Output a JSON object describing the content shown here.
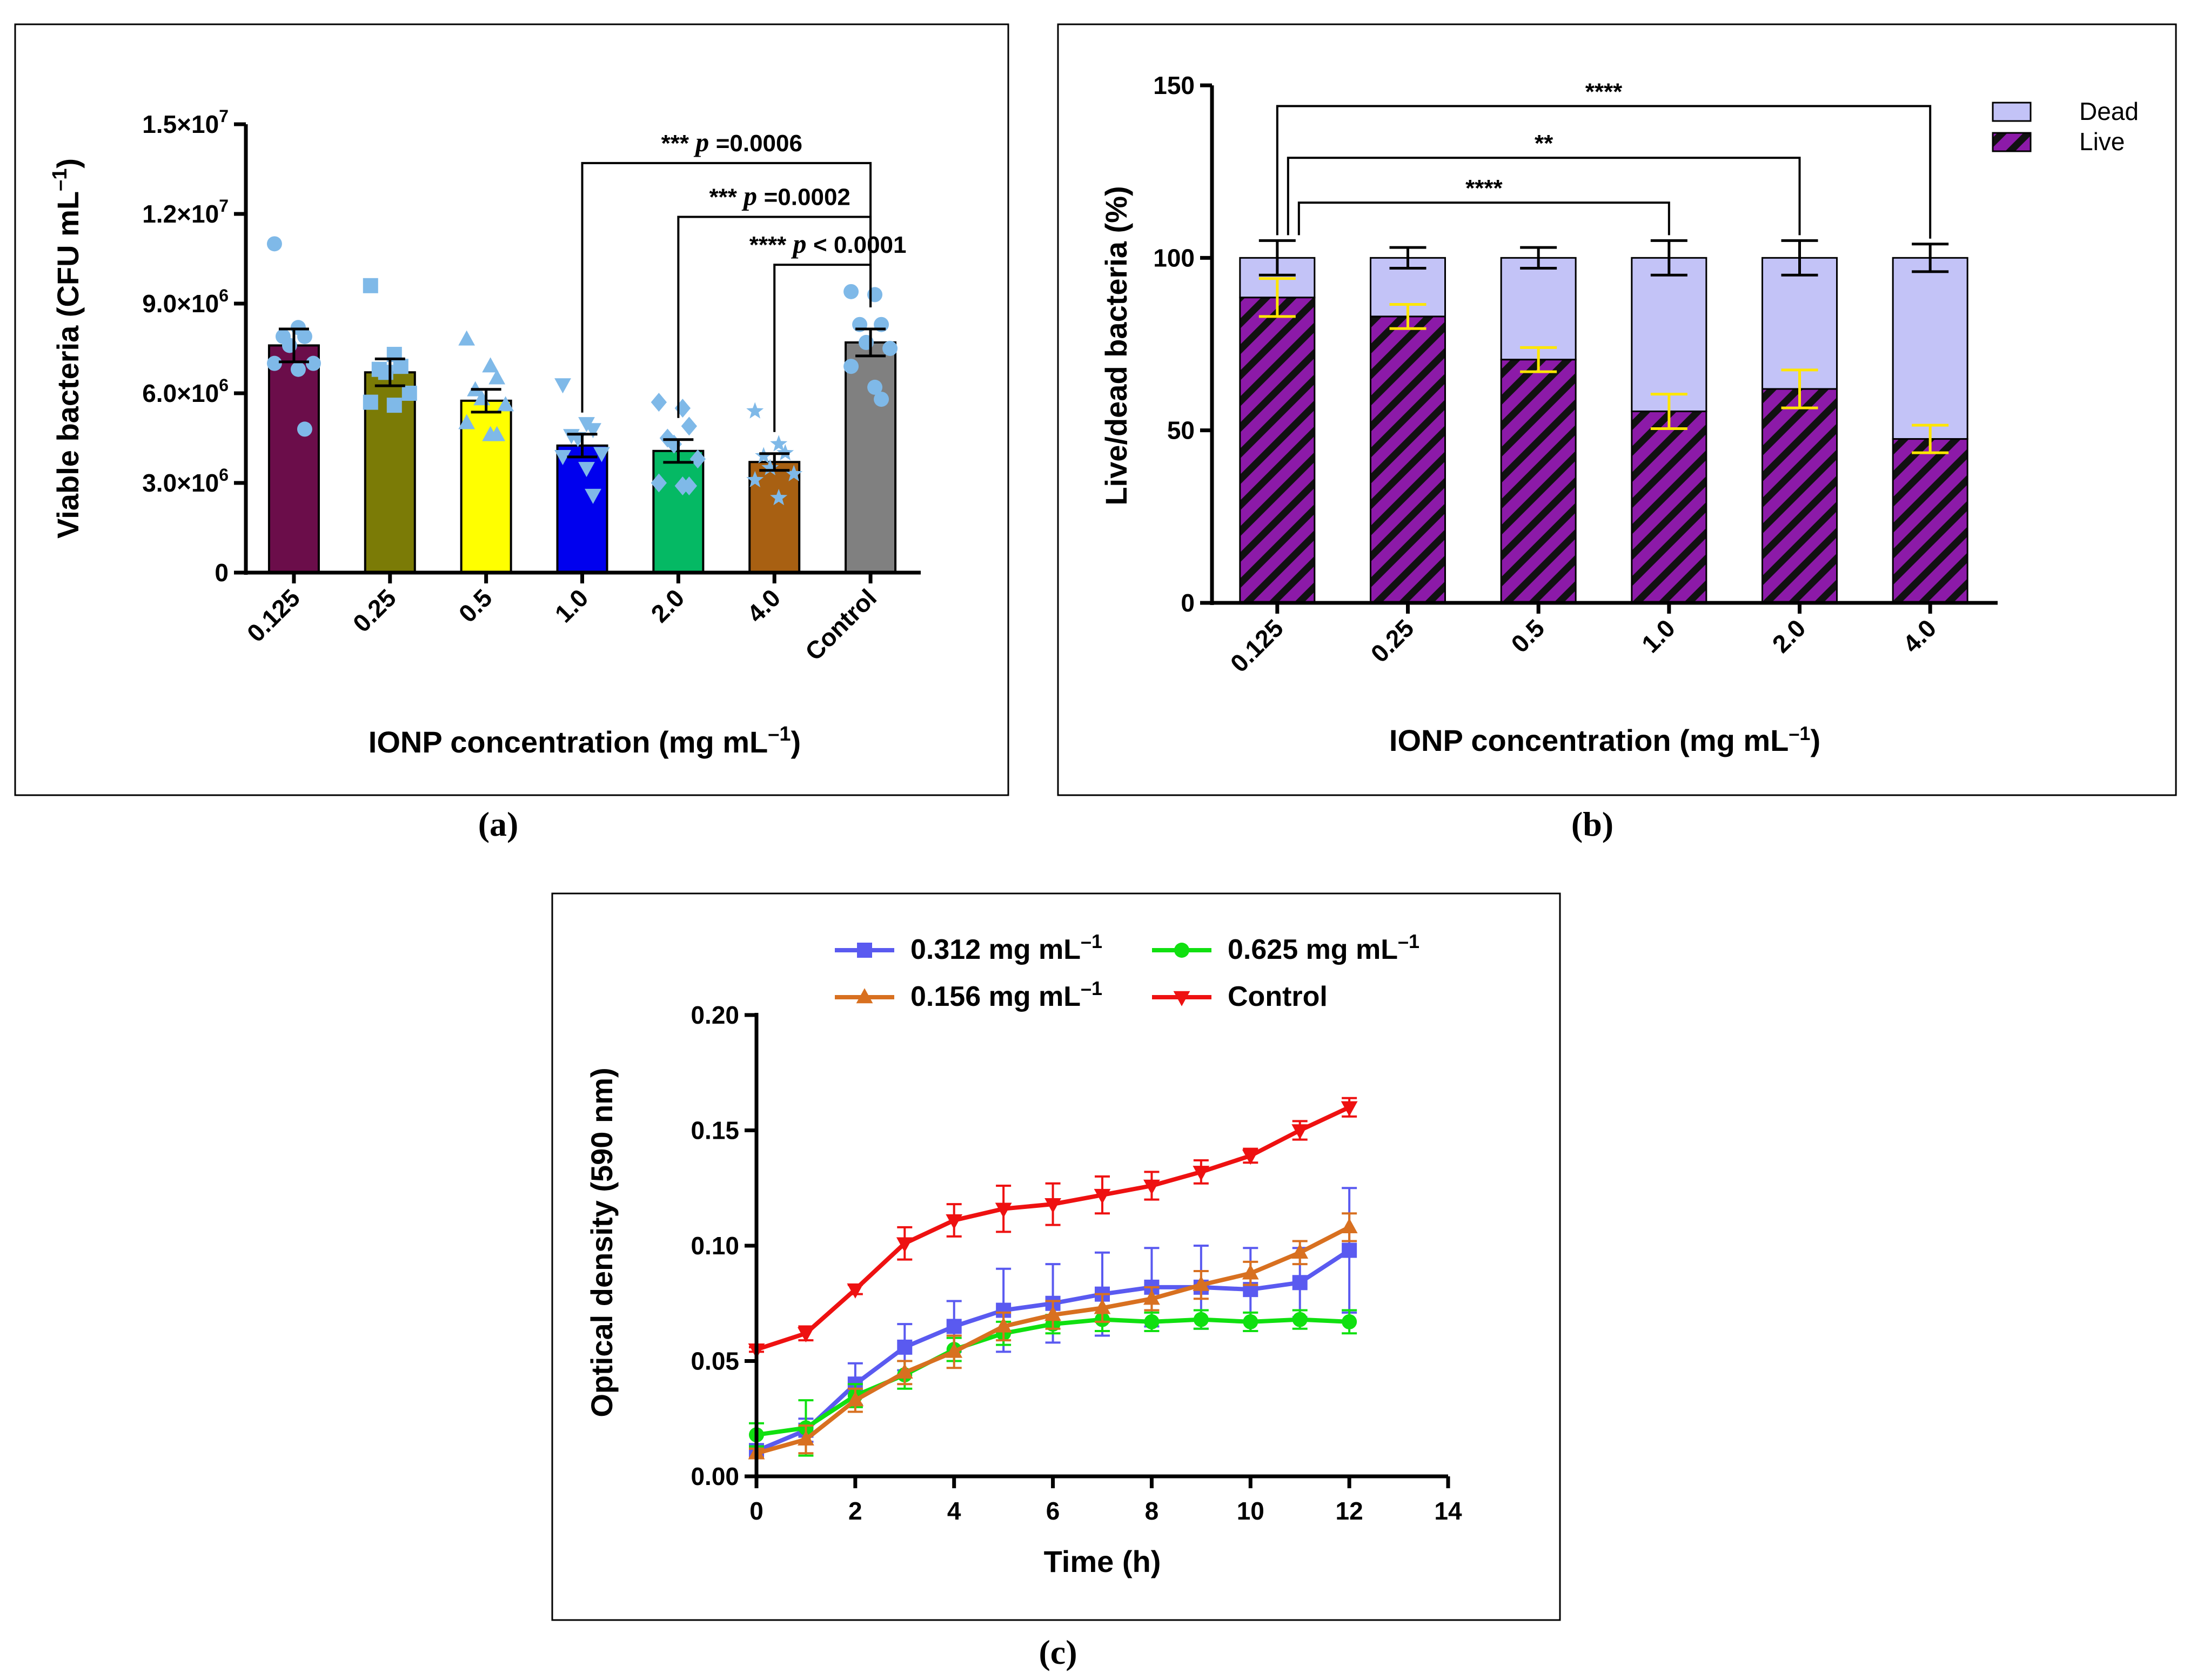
{
  "chart_data": [
    {
      "panel": "(a)",
      "type": "bar",
      "categories": [
        "0.125",
        "0.25",
        "0.5",
        "1.0",
        "2.0",
        "4.0",
        "Control"
      ],
      "values": [
        7600000,
        6700000,
        5750000,
        4250000,
        4070000,
        3700000,
        7700000
      ],
      "errors": [
        550000,
        450000,
        380000,
        380000,
        380000,
        280000,
        450000
      ],
      "colors": [
        "#6b0d4a",
        "#7b7b06",
        "#ffff00",
        "#0000ee",
        "#05b964",
        "#a86012",
        "#808080"
      ],
      "point_colors": "#7fb9e8",
      "points": [
        [
          11000000,
          8200000,
          7900000,
          7900000,
          7600000,
          7000000,
          7000000,
          6800000,
          4800000
        ],
        [
          9600000,
          7300000,
          6900000,
          6800000,
          6700000,
          6000000,
          5700000,
          5600000
        ],
        [
          7800000,
          6900000,
          6500000,
          6100000,
          5800000,
          5600000,
          5000000,
          4600000,
          4600000
        ],
        [
          6300000,
          5000000,
          4800000,
          4600000,
          4500000,
          4000000,
          3900000,
          3500000,
          2600000
        ],
        [
          5700000,
          5500000,
          4900000,
          4500000,
          4300000,
          3800000,
          3000000,
          2900000,
          2900000
        ],
        [
          5400000,
          4300000,
          4000000,
          3900000,
          3500000,
          3300000,
          3100000,
          2500000
        ],
        [
          9400000,
          9300000,
          8300000,
          8300000,
          7700000,
          7500000,
          6900000,
          6200000,
          5800000
        ]
      ],
      "markers": [
        "circle",
        "square",
        "triangle",
        "triangle-down",
        "diamond",
        "star",
        "circle"
      ],
      "title": "",
      "xlabel": "IONP concentration (mg mL",
      "xlabel_sup": "–1",
      "xlabel_close": ")",
      "ylabel": "Viable bacteria (CFU mL",
      "ylabel_sup": "–1",
      "ylabel_close": ")",
      "ylim": [
        0,
        15000000
      ],
      "yticks": [
        {
          "value": 0,
          "mant": "0",
          "exp": ""
        },
        {
          "value": 3000000,
          "mant": "3.0×10",
          "exp": "6"
        },
        {
          "value": 6000000,
          "mant": "6.0×10",
          "exp": "6"
        },
        {
          "value": 9000000,
          "mant": "9.0×10",
          "exp": "6"
        },
        {
          "value": 12000000,
          "mant": "1.2×10",
          "exp": "7"
        },
        {
          "value": 15000000,
          "mant": "1.5×10",
          "exp": "7"
        }
      ],
      "comparisons": [
        {
          "from": "1.0",
          "to": "Control",
          "stars": "***",
          "p_label": "p",
          "p_value": "=0.0006",
          "level": 13700000
        },
        {
          "from": "2.0",
          "to": "Control",
          "stars": "***",
          "p_label": "p",
          "p_value": "=0.0002",
          "level": 11900000
        },
        {
          "from": "4.0",
          "to": "Control",
          "stars": "****",
          "p_label": "p",
          "p_value": "< 0.0001",
          "level": 10300000
        }
      ],
      "caption": "(a)"
    },
    {
      "panel": "(b)",
      "type": "bar",
      "stacked": true,
      "categories": [
        "0.125",
        "0.25",
        "0.5",
        "1.0",
        "2.0",
        "4.0"
      ],
      "series": [
        {
          "name": "Live",
          "values": [
            88.5,
            83,
            70.5,
            55.5,
            62,
            47.5
          ],
          "errors": [
            5.5,
            3.5,
            3.5,
            5,
            5.5,
            4
          ],
          "color": "#8c1aa8",
          "hatch": "#111111",
          "error_color": "#ffe600"
        },
        {
          "name": "Dead",
          "values": [
            11.5,
            17,
            29.5,
            44.5,
            38,
            52.5
          ],
          "color": "#c3c3f7"
        }
      ],
      "total_errors": [
        5,
        3,
        3,
        5,
        5,
        4
      ],
      "legend": [
        {
          "label": "Dead",
          "color": "#c3c3f7"
        },
        {
          "label": "Live",
          "color": "#8c1aa8"
        }
      ],
      "legend_position": "top-right",
      "xlabel": "IONP concentration (mg mL",
      "xlabel_sup": "–1",
      "xlabel_close": ")",
      "ylabel": "Live/dead bacteria (%)",
      "ylim": [
        0,
        150
      ],
      "yticks": [
        0,
        50,
        100,
        150
      ],
      "comparisons": [
        {
          "from": "0.125",
          "to": "4.0",
          "stars": "****",
          "level": 144
        },
        {
          "from": "0.125",
          "to": "2.0",
          "stars": "**",
          "level": 129
        },
        {
          "from": "0.125",
          "to": "1.0",
          "stars": "****",
          "level": 116
        }
      ],
      "caption": "(b)"
    },
    {
      "panel": "(c)",
      "type": "line",
      "x": [
        0,
        1,
        2,
        3,
        4,
        5,
        6,
        7,
        8,
        9,
        10,
        11,
        12
      ],
      "series": [
        {
          "name": "0.312 mg mL",
          "sup": "–1",
          "color": "#5a5af0",
          "marker": "square",
          "values": [
            0.011,
            0.02,
            0.04,
            0.056,
            0.065,
            0.072,
            0.075,
            0.079,
            0.082,
            0.082,
            0.081,
            0.084,
            0.098
          ],
          "errors": [
            0.003,
            0.005,
            0.009,
            0.01,
            0.011,
            0.018,
            0.017,
            0.018,
            0.017,
            0.018,
            0.018,
            0.015,
            0.027
          ]
        },
        {
          "name": "0.625 mg mL",
          "sup": "–1",
          "color": "#10e010",
          "marker": "circle",
          "values": [
            0.018,
            0.021,
            0.035,
            0.044,
            0.055,
            0.062,
            0.066,
            0.068,
            0.067,
            0.068,
            0.067,
            0.068,
            0.067
          ],
          "errors": [
            0.005,
            0.012,
            0.005,
            0.006,
            0.005,
            0.005,
            0.004,
            0.005,
            0.004,
            0.004,
            0.004,
            0.004,
            0.005
          ]
        },
        {
          "name": "0.156 mg mL",
          "sup": "–1",
          "color": "#d87020",
          "marker": "triangle",
          "values": [
            0.01,
            0.016,
            0.033,
            0.045,
            0.054,
            0.065,
            0.07,
            0.073,
            0.077,
            0.083,
            0.088,
            0.097,
            0.108
          ],
          "errors": [
            0.002,
            0.006,
            0.005,
            0.005,
            0.007,
            0.006,
            0.006,
            0.006,
            0.005,
            0.006,
            0.005,
            0.005,
            0.006
          ]
        },
        {
          "name": "Control",
          "sup": "",
          "color": "#ee1111",
          "marker": "triangle-down",
          "values": [
            0.055,
            0.062,
            0.081,
            0.101,
            0.111,
            0.116,
            0.118,
            0.122,
            0.126,
            0.132,
            0.139,
            0.15,
            0.16
          ],
          "errors": [
            0.001,
            0.003,
            0.002,
            0.007,
            0.007,
            0.01,
            0.009,
            0.008,
            0.006,
            0.005,
            0.003,
            0.004,
            0.004
          ]
        }
      ],
      "xlabel": "Time (h)",
      "ylabel": "Optical density (590 nm)",
      "xlim": [
        0,
        14
      ],
      "ylim": [
        0,
        0.2
      ],
      "xticks": [
        0,
        2,
        4,
        6,
        8,
        10,
        12,
        14
      ],
      "yticks": [
        "0.00",
        "0.05",
        "0.10",
        "0.15",
        "0.20"
      ],
      "legend_position": "top",
      "caption": "(c)"
    }
  ]
}
